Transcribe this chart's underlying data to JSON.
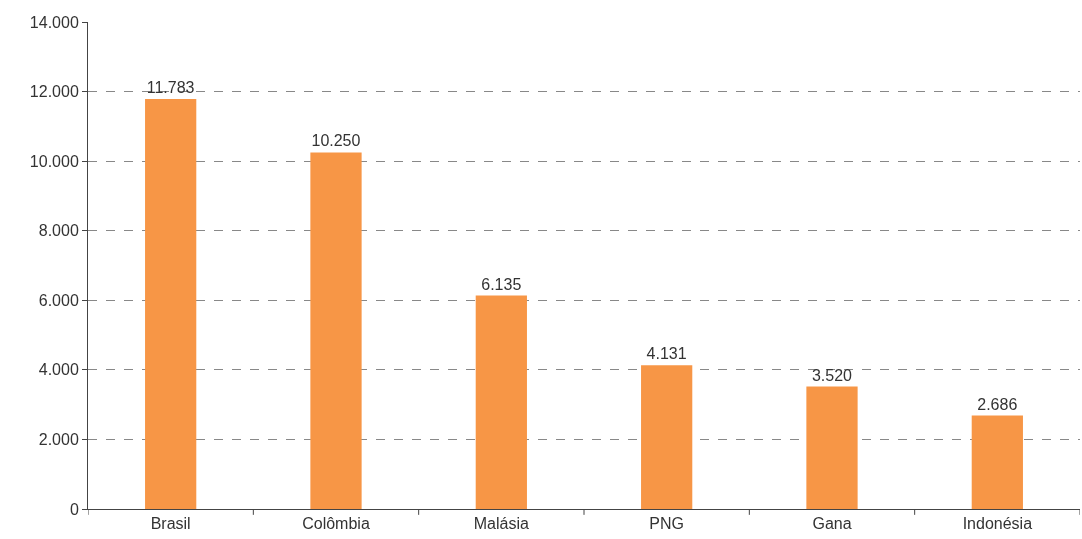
{
  "chart_data": {
    "type": "bar",
    "categories": [
      "Brasil",
      "Colômbia",
      "Malásia",
      "PNG",
      "Gana",
      "Indonésia"
    ],
    "values": [
      11783,
      10250,
      6135,
      4131,
      3520,
      2686
    ],
    "value_labels": [
      "11.783",
      "10.250",
      "6.135",
      "4.131",
      "3.520",
      "2.686"
    ],
    "color": "#f79646",
    "ylim": [
      0,
      14000
    ],
    "yticks": [
      0,
      {
        "value": 2000,
        "label": "2.000"
      },
      {
        "value": 4000,
        "label": "4.000"
      },
      {
        "value": 6000,
        "label": "6.000"
      },
      {
        "value": 8000,
        "label": "8.000"
      },
      {
        "value": 10000,
        "label": "10.000"
      },
      {
        "value": 12000,
        "label": "12.000"
      },
      {
        "value": 14000,
        "label": "14.000"
      }
    ],
    "grid": "y"
  }
}
